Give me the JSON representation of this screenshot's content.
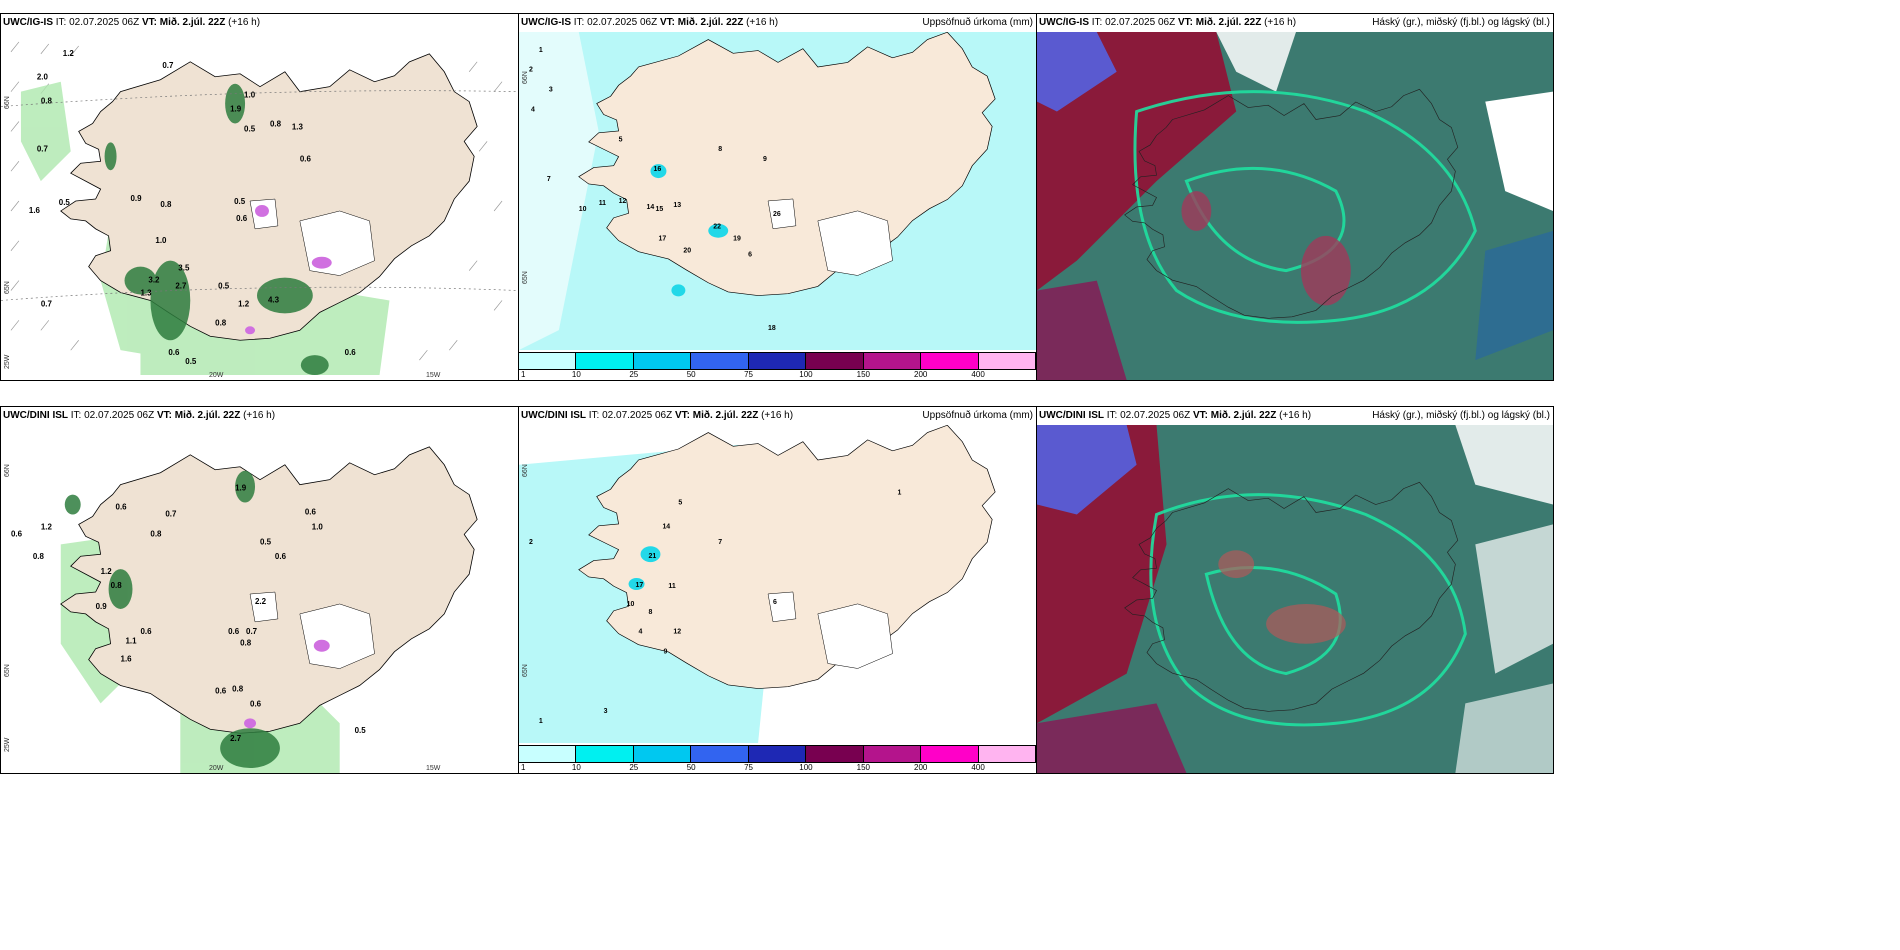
{
  "panels": [
    {
      "title_model": "UWC/IG-IS",
      "title_it": " IT: 02.07.2025 06Z ",
      "title_vt_label": "VT: ",
      "title_vt_value": "Mið. 2.júl. 22Z",
      "title_lead": " (+16 h)",
      "right_label": ""
    },
    {
      "title_model": "UWC/IG-IS",
      "title_it": " IT: 02.07.2025 06Z ",
      "title_vt_label": "VT: ",
      "title_vt_value": "Mið. 2.júl. 22Z",
      "title_lead": " (+16 h)",
      "right_label": "Uppsöfnuð úrkoma (mm)"
    },
    {
      "title_model": "UWC/IG-IS",
      "title_it": " IT: 02.07.2025 06Z ",
      "title_vt_label": "VT: ",
      "title_vt_value": "Mið. 2.júl. 22Z",
      "title_lead": " (+16 h)",
      "right_label": "Háský (gr.), miðský (fj.bl.) og lágský (bl.)"
    },
    {
      "title_model": "UWC/DINI ISL",
      "title_it": " IT: 02.07.2025 06Z ",
      "title_vt_label": "VT: ",
      "title_vt_value": "Mið. 2.júl. 22Z",
      "title_lead": " (+16 h)",
      "right_label": ""
    },
    {
      "title_model": "UWC/DINI ISL",
      "title_it": " IT: 02.07.2025 06Z ",
      "title_vt_label": "VT: ",
      "title_vt_value": "Mið. 2.júl. 22Z",
      "title_lead": " (+16 h)",
      "right_label": "Uppsöfnuð úrkoma (mm)"
    },
    {
      "title_model": "UWC/DINI ISL",
      "title_it": " IT: 02.07.2025 06Z ",
      "title_vt_label": "VT: ",
      "title_vt_value": "Mið. 2.júl. 22Z",
      "title_lead": " (+16 h)",
      "right_label": "Háský (gr.), miðský (fj.bl.) og lágský (bl.)"
    }
  ],
  "axis_labels": {
    "lat66": "66N",
    "lat65": "65N",
    "lon25": "25W",
    "lon20": "20W",
    "lon15": "15W"
  },
  "precip_colorbar": {
    "colors": [
      "#c8ffff",
      "#00f0f0",
      "#00c8f0",
      "#3264f0",
      "#1e28b4",
      "#780050",
      "#b4148c",
      "#ff00c8",
      "#ffb4f0"
    ],
    "labels": [
      "1",
      "10",
      "25",
      "50",
      "75",
      "100",
      "150",
      "200",
      "400"
    ]
  },
  "wind_panel_values": {
    "top": [
      "1.2",
      "0.7",
      "2.0",
      "0.8",
      "0.7",
      "1.9",
      "1.0",
      "0.5",
      "0.8",
      "1.3",
      "0.6",
      "1.6",
      "0.5",
      "0.9",
      "0.8",
      "0.6",
      "0.5",
      "1.0",
      "3.5",
      "3.2",
      "2.7",
      "1.3",
      "1.2",
      "4.3",
      "0.8",
      "0.7",
      "0.5",
      "0.6",
      "0.5",
      "0.6"
    ],
    "bottom": [
      "0.6",
      "0.8",
      "1.2",
      "0.6",
      "0.7",
      "0.8",
      "0.6",
      "1.0",
      "0.5",
      "1.9",
      "0.6",
      "1.2",
      "0.8",
      "1.1",
      "0.9",
      "0.6",
      "2.2",
      "0.6",
      "0.7",
      "0.8",
      "1.6",
      "0.6",
      "0.8",
      "2.7",
      "0.5",
      "0.6"
    ]
  },
  "precip_panel_values": {
    "top": [
      "1",
      "2",
      "3",
      "4",
      "5",
      "7",
      "10",
      "11",
      "12",
      "14",
      "15",
      "13",
      "16",
      "17",
      "20",
      "22",
      "19",
      "26",
      "8",
      "9",
      "6",
      "18"
    ],
    "bottom": [
      "1",
      "2",
      "3",
      "4",
      "5",
      "7",
      "8",
      "9",
      "10",
      "11",
      "12",
      "14",
      "17",
      "21",
      "6",
      "1"
    ]
  }
}
